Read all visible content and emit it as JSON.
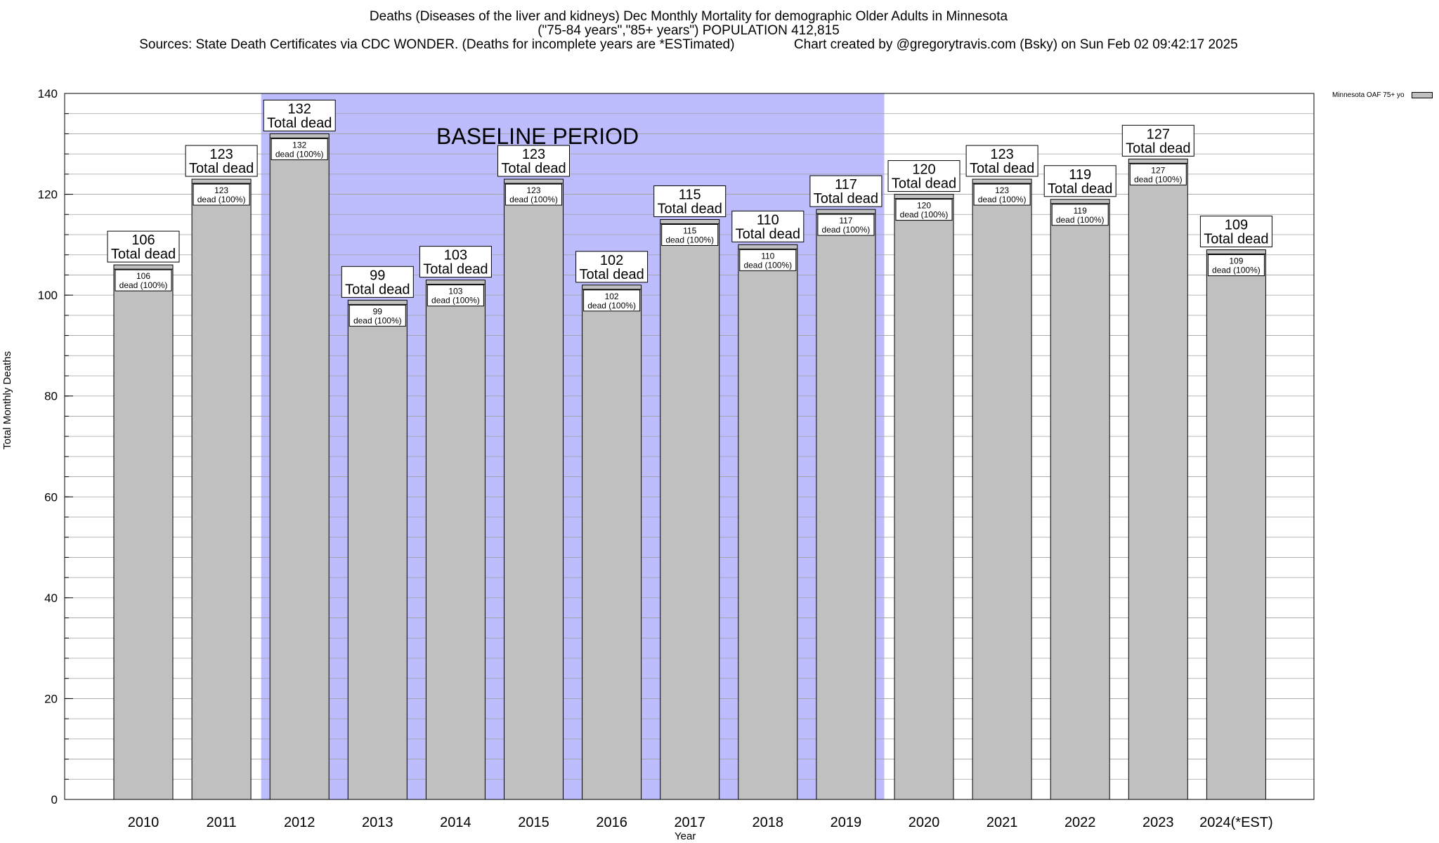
{
  "title": {
    "line1": "Deaths (Diseases of the liver and kidneys) Dec Monthly Mortality for demographic Older Adults in Minnesota",
    "line2": "(\"75-84 years\",\"85+ years\") POPULATION 412,815",
    "line3": "Sources: State Death Certificates via CDC WONDER. (Deaths for incomplete years are *ESTimated)                Chart created by @gregorytravis.com (Bsky) on Sun Feb 02 09:42:17 2025"
  },
  "legend": {
    "label": "Minnesota OAF 75+ yo"
  },
  "chart_data": {
    "type": "bar",
    "categories": [
      "2010",
      "2011",
      "2012",
      "2013",
      "2014",
      "2015",
      "2016",
      "2017",
      "2018",
      "2019",
      "2020",
      "2021",
      "2022",
      "2023",
      "2024(*EST)"
    ],
    "series": [
      {
        "name": "Minnesota OAF 75+ yo",
        "values": [
          106,
          123,
          132,
          99,
          103,
          123,
          102,
          115,
          110,
          117,
          120,
          123,
          119,
          127,
          109
        ]
      }
    ],
    "xlabel": "Year",
    "ylabel": "Total Monthly Deaths",
    "ylim": [
      0,
      140
    ],
    "yticks": [
      0,
      20,
      40,
      60,
      80,
      100,
      120,
      140
    ],
    "baseline": {
      "label": "BASELINE PERIOD",
      "from": "2012",
      "to": "2019",
      "color": "#bdbdfd"
    },
    "bar_color": "#c0c0c0",
    "top_label_suffix": "Total dead",
    "inner_label_suffix": "dead (100%)",
    "grid": true,
    "legend_position": "top-right"
  }
}
